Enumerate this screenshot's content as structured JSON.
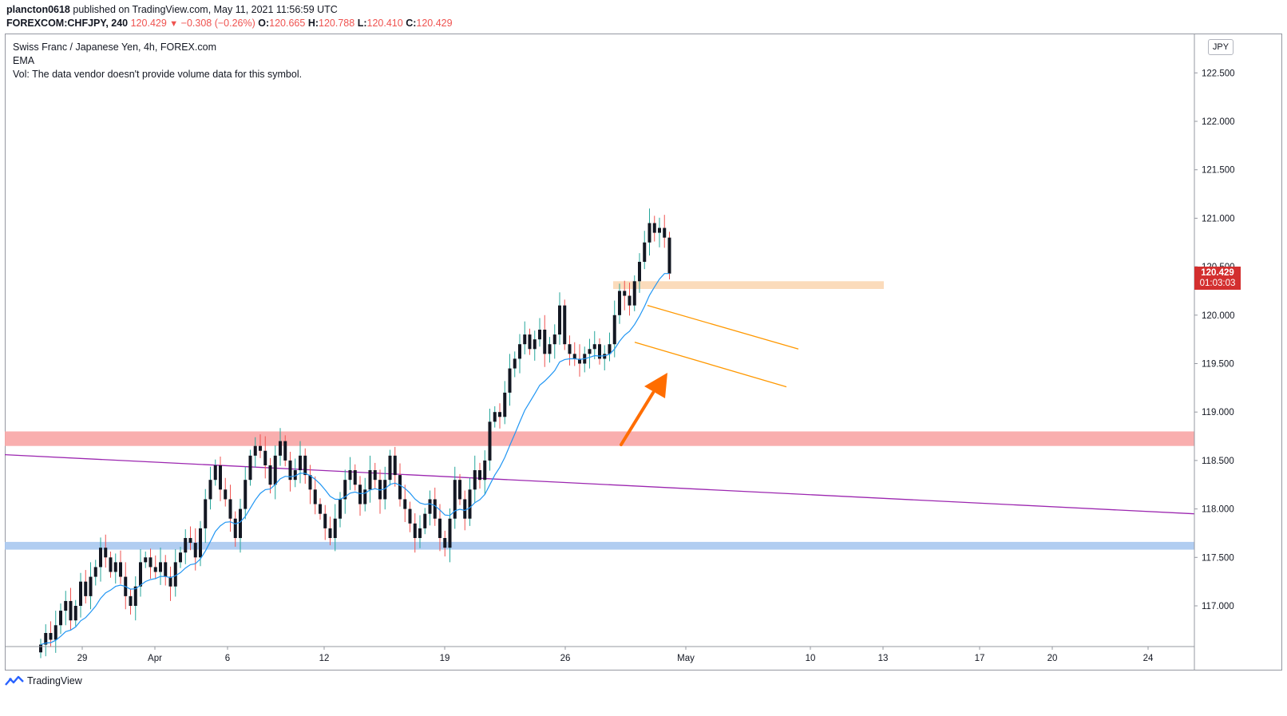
{
  "header": {
    "author": "plancton0618",
    "published_text": "published on TradingView.com, May 11, 2021 11:56:59 UTC",
    "symbol": "FOREXCOM:CHFJPY, 240",
    "last": "120.429",
    "change": "−0.308 (−0.26%)",
    "o_label": "O:",
    "o_value": "120.665",
    "h_label": "H:",
    "h_value": "120.788",
    "l_label": "L:",
    "l_value": "120.410",
    "c_label": "C:",
    "c_value": "120.429"
  },
  "legend": {
    "title": "Swiss Franc / Japanese Yen, 4h, FOREX.com",
    "ema": "EMA",
    "vol": "Vol: The data vendor doesn't provide volume data for this symbol."
  },
  "currency_button": "JPY",
  "price_tag": {
    "price": "120.429",
    "countdown": "01:03:03"
  },
  "footer": {
    "brand": "TradingView"
  },
  "colors": {
    "up": "#26a69a",
    "down": "#ef5350",
    "candle_body": "#131722",
    "ema": "#2196f3",
    "trendline": "#9c27b0",
    "channel": "#ff9800",
    "arrow": "#ff6d00",
    "resistance_zone": "#f8a5a5",
    "support_zone": "#a9c8f0",
    "breakout_zone": "#fbd7b4"
  },
  "chart_data": {
    "type": "candlestick",
    "title": "Swiss Franc / Japanese Yen, 4h, FOREX.com",
    "ylim": [
      116.6,
      122.9
    ],
    "y_ticks": [
      "122.500",
      "122.000",
      "121.500",
      "121.000",
      "120.500",
      "120.000",
      "119.500",
      "119.000",
      "118.500",
      "118.000",
      "117.500",
      "117.000"
    ],
    "x_ticks": [
      "29",
      "Apr",
      "6",
      "12",
      "19",
      "26",
      "May",
      "10",
      "13",
      "17",
      "20",
      "24"
    ],
    "zones": [
      {
        "name": "resistance",
        "from": 118.65,
        "to": 118.8
      },
      {
        "name": "support",
        "from": 117.58,
        "to": 117.66
      },
      {
        "name": "breakout",
        "from": 120.27,
        "to": 120.35
      }
    ],
    "trendline": {
      "start": 118.56,
      "end": 117.95
    },
    "channel": {
      "upper_start": 120.1,
      "upper_end": 119.65,
      "lower_start": 119.72,
      "lower_end": 119.26
    },
    "closes": [
      116.6,
      116.72,
      116.65,
      116.8,
      116.95,
      117.05,
      116.85,
      117.0,
      117.25,
      117.1,
      117.3,
      117.4,
      117.6,
      117.5,
      117.35,
      117.45,
      117.3,
      117.1,
      117.0,
      117.2,
      117.45,
      117.5,
      117.4,
      117.35,
      117.45,
      117.3,
      117.2,
      117.45,
      117.55,
      117.7,
      117.65,
      117.5,
      117.8,
      118.1,
      118.3,
      118.45,
      118.2,
      118.1,
      117.9,
      117.7,
      118.0,
      118.3,
      118.55,
      118.65,
      118.6,
      118.45,
      118.25,
      118.55,
      118.7,
      118.5,
      118.3,
      118.4,
      118.55,
      118.35,
      118.2,
      118.05,
      117.95,
      117.8,
      117.7,
      117.9,
      118.1,
      118.3,
      118.4,
      118.25,
      118.05,
      118.2,
      118.4,
      118.3,
      118.1,
      118.3,
      118.55,
      118.35,
      118.1,
      118.0,
      117.85,
      117.7,
      117.8,
      117.95,
      118.1,
      117.9,
      117.7,
      117.6,
      117.9,
      118.3,
      118.1,
      117.9,
      118.2,
      118.4,
      118.3,
      118.5,
      118.9,
      119.0,
      118.95,
      119.2,
      119.45,
      119.55,
      119.7,
      119.8,
      119.65,
      119.75,
      119.85,
      119.6,
      119.7,
      119.8,
      120.1,
      119.7,
      119.6,
      119.55,
      119.5,
      119.6,
      119.65,
      119.7,
      119.55,
      119.6,
      119.7,
      120.0,
      120.25,
      120.2,
      120.1,
      120.35,
      120.55,
      120.75,
      120.95,
      120.85,
      120.9,
      120.8,
      120.429
    ]
  }
}
